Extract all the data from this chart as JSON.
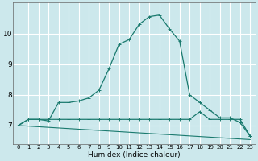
{
  "xlabel": "Humidex (Indice chaleur)",
  "background_color": "#cce8ec",
  "line_color": "#1a7a6e",
  "grid_color": "#ffffff",
  "xlim": [
    -0.5,
    23.5
  ],
  "ylim": [
    6.4,
    11.0
  ],
  "yticks": [
    7,
    8,
    9,
    10
  ],
  "xticks": [
    0,
    1,
    2,
    3,
    4,
    5,
    6,
    7,
    8,
    9,
    10,
    11,
    12,
    13,
    14,
    15,
    16,
    17,
    18,
    19,
    20,
    21,
    22,
    23
  ],
  "series1_x": [
    0,
    1,
    2,
    3,
    4,
    5,
    6,
    7,
    8,
    9,
    10,
    11,
    12,
    13,
    14,
    15,
    16,
    17,
    18,
    19,
    20,
    21,
    22,
    23
  ],
  "series1_y": [
    7.0,
    7.2,
    7.2,
    7.15,
    7.75,
    7.75,
    7.8,
    7.9,
    8.15,
    8.85,
    9.65,
    9.8,
    10.3,
    10.55,
    10.6,
    10.15,
    9.75,
    8.0,
    7.75,
    7.5,
    7.25,
    7.25,
    7.1,
    6.65
  ],
  "series2_x": [
    0,
    1,
    2,
    3,
    4,
    5,
    6,
    7,
    8,
    9,
    10,
    11,
    12,
    13,
    14,
    15,
    16,
    17,
    18,
    19,
    20,
    21,
    22,
    23
  ],
  "series2_y": [
    7.0,
    7.2,
    7.2,
    7.2,
    7.2,
    7.2,
    7.2,
    7.2,
    7.2,
    7.2,
    7.2,
    7.2,
    7.2,
    7.2,
    7.2,
    7.2,
    7.2,
    7.2,
    7.45,
    7.2,
    7.2,
    7.2,
    7.2,
    6.65
  ],
  "series3_x": [
    0,
    1,
    2,
    3,
    4,
    5,
    6,
    7,
    8,
    9,
    10,
    11,
    12,
    13,
    14,
    15,
    16,
    17,
    18,
    19,
    20,
    21,
    22,
    23
  ],
  "series3_y": [
    7.0,
    6.98,
    6.96,
    6.94,
    6.92,
    6.9,
    6.88,
    6.86,
    6.84,
    6.82,
    6.8,
    6.78,
    6.76,
    6.74,
    6.72,
    6.7,
    6.68,
    6.66,
    6.64,
    6.62,
    6.6,
    6.58,
    6.56,
    6.54
  ],
  "marker": "+"
}
